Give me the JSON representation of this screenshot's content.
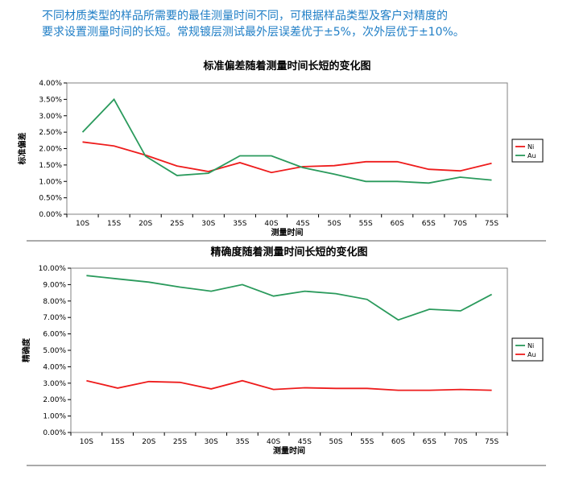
{
  "intro": {
    "line1": "不同材质类型的样品所需要的最佳测量时间不同，可根据样品类型及客户对精度的",
    "line2": "要求设置测量时间的长短。常规镀层测试最外层误差优于±5%，次外层优于±10%。"
  },
  "colors": {
    "Ni_chart1": "#ee1c1c",
    "Au_chart1": "#2a9a5c",
    "Ni_chart2": "#2a9a5c",
    "Au_chart2": "#ee1c1c"
  },
  "chart_data": [
    {
      "type": "line",
      "title": "标准偏差随着测量时间长短的变化图",
      "xlabel": "测量时间",
      "ylabel": "标准偏差",
      "categories": [
        "10S",
        "15S",
        "20S",
        "25S",
        "30S",
        "35S",
        "40S",
        "45S",
        "50S",
        "55S",
        "60S",
        "65S",
        "70S",
        "75S"
      ],
      "yticks": [
        "0.00%",
        "0.50%",
        "1.00%",
        "1.50%",
        "2.00%",
        "2.50%",
        "3.00%",
        "3.50%",
        "4.00%"
      ],
      "ylim": [
        0,
        4
      ],
      "grid": false,
      "legend": "right",
      "series": [
        {
          "name": "Ni",
          "color": "#ee1c1c",
          "values": [
            2.2,
            2.08,
            1.8,
            1.47,
            1.3,
            1.57,
            1.27,
            1.45,
            1.48,
            1.6,
            1.6,
            1.37,
            1.32,
            1.55
          ]
        },
        {
          "name": "Au",
          "color": "#2a9a5c",
          "values": [
            2.5,
            3.5,
            1.77,
            1.18,
            1.25,
            1.78,
            1.78,
            1.42,
            1.22,
            1.0,
            1.0,
            0.95,
            1.13,
            1.04
          ]
        }
      ]
    },
    {
      "type": "line",
      "title": "精确度随着测量时间长短的变化图",
      "xlabel": "测量时间",
      "ylabel": "精确度",
      "categories": [
        "10S",
        "15S",
        "20S",
        "25S",
        "30S",
        "35S",
        "40S",
        "45S",
        "50S",
        "55S",
        "60S",
        "65S",
        "70S",
        "75S"
      ],
      "yticks": [
        "0.00%",
        "1.00%",
        "2.00%",
        "3.00%",
        "4.00%",
        "5.00%",
        "6.00%",
        "7.00%",
        "8.00%",
        "9.00%",
        "10.00%"
      ],
      "ylim": [
        0,
        10
      ],
      "grid": false,
      "legend": "right",
      "series": [
        {
          "name": "Ni",
          "color": "#2a9a5c",
          "values": [
            9.55,
            9.35,
            9.15,
            8.85,
            8.6,
            9.0,
            8.3,
            8.6,
            8.45,
            8.1,
            6.85,
            7.5,
            7.4,
            8.4
          ]
        },
        {
          "name": "Au",
          "color": "#ee1c1c",
          "values": [
            3.15,
            2.7,
            3.1,
            3.05,
            2.65,
            3.15,
            2.62,
            2.72,
            2.68,
            2.68,
            2.57,
            2.57,
            2.62,
            2.57
          ]
        }
      ]
    }
  ]
}
